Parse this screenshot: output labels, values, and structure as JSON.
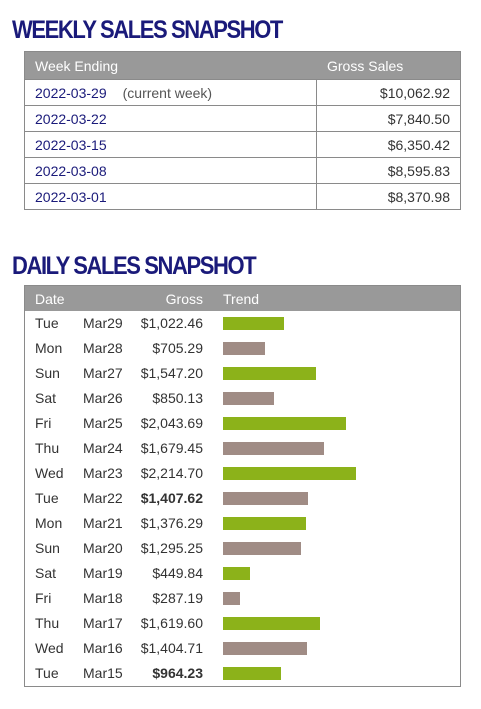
{
  "weekly": {
    "title": "WEEKLY SALES SNAPSHOT",
    "headers": {
      "week_ending": "Week Ending",
      "gross_sales": "Gross Sales"
    },
    "rows": [
      {
        "week": "2022-03-29",
        "note": "(current week)",
        "gross": "$10,062.92"
      },
      {
        "week": "2022-03-22",
        "note": "",
        "gross": "$7,840.50"
      },
      {
        "week": "2022-03-15",
        "note": "",
        "gross": "$6,350.42"
      },
      {
        "week": "2022-03-08",
        "note": "",
        "gross": "$8,595.83"
      },
      {
        "week": "2022-03-01",
        "note": "",
        "gross": "$8,370.98"
      }
    ]
  },
  "daily": {
    "title": "DAILY SALES SNAPSHOT",
    "headers": {
      "date": "Date",
      "gross": "Gross",
      "trend": "Trend"
    },
    "colors": {
      "up": "#8cb21a",
      "down": "#a08c85"
    },
    "rows": [
      {
        "day": "Tue",
        "date": "Mar29",
        "gross": "$1,022.46",
        "value": 1022.46,
        "color": "green",
        "bold": false
      },
      {
        "day": "Mon",
        "date": "Mar28",
        "gross": "$705.29",
        "value": 705.29,
        "color": "gray",
        "bold": false
      },
      {
        "day": "Sun",
        "date": "Mar27",
        "gross": "$1,547.20",
        "value": 1547.2,
        "color": "green",
        "bold": false
      },
      {
        "day": "Sat",
        "date": "Mar26",
        "gross": "$850.13",
        "value": 850.13,
        "color": "gray",
        "bold": false
      },
      {
        "day": "Fri",
        "date": "Mar25",
        "gross": "$2,043.69",
        "value": 2043.69,
        "color": "green",
        "bold": false
      },
      {
        "day": "Thu",
        "date": "Mar24",
        "gross": "$1,679.45",
        "value": 1679.45,
        "color": "gray",
        "bold": false
      },
      {
        "day": "Wed",
        "date": "Mar23",
        "gross": "$2,214.70",
        "value": 2214.7,
        "color": "green",
        "bold": false
      },
      {
        "day": "Tue",
        "date": "Mar22",
        "gross": "$1,407.62",
        "value": 1407.62,
        "color": "gray",
        "bold": true
      },
      {
        "day": "Mon",
        "date": "Mar21",
        "gross": "$1,376.29",
        "value": 1376.29,
        "color": "green",
        "bold": false
      },
      {
        "day": "Sun",
        "date": "Mar20",
        "gross": "$1,295.25",
        "value": 1295.25,
        "color": "gray",
        "bold": false
      },
      {
        "day": "Sat",
        "date": "Mar19",
        "gross": "$449.84",
        "value": 449.84,
        "color": "green",
        "bold": false
      },
      {
        "day": "Fri",
        "date": "Mar18",
        "gross": "$287.19",
        "value": 287.19,
        "color": "gray",
        "bold": false
      },
      {
        "day": "Thu",
        "date": "Mar17",
        "gross": "$1,619.60",
        "value": 1619.6,
        "color": "green",
        "bold": false
      },
      {
        "day": "Wed",
        "date": "Mar16",
        "gross": "$1,404.71",
        "value": 1404.71,
        "color": "gray",
        "bold": false
      },
      {
        "day": "Tue",
        "date": "Mar15",
        "gross": "$964.23",
        "value": 964.23,
        "color": "green",
        "bold": true
      }
    ]
  }
}
